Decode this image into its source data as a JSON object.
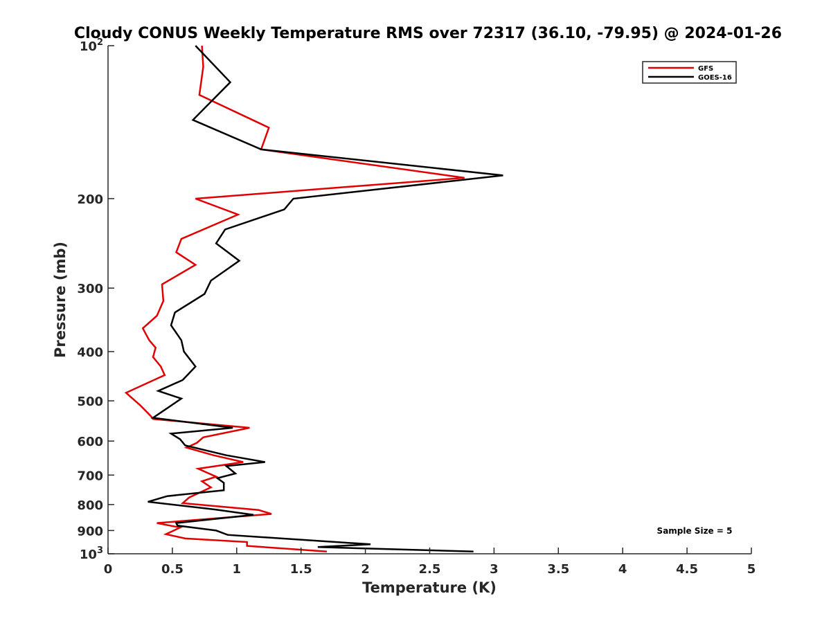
{
  "chart_data": {
    "type": "line",
    "title": "Cloudy CONUS Weekly Temperature RMS over 72317 (36.10, -79.95) @ 2024-01-26",
    "xlabel": "Temperature (K)",
    "ylabel": "Pressure (mb)",
    "xlim": [
      0,
      5
    ],
    "ylim": [
      100,
      1000
    ],
    "y_scale": "log",
    "y_reversed": true,
    "x_ticks": [
      "0",
      "0.5",
      "1",
      "1.5",
      "2",
      "2.5",
      "3",
      "3.5",
      "4",
      "4.5",
      "5"
    ],
    "y_ticks": [
      {
        "value": 100,
        "base": "10",
        "exp": "2"
      },
      {
        "value": 200,
        "label": "200"
      },
      {
        "value": 300,
        "label": "300"
      },
      {
        "value": 400,
        "label": "400"
      },
      {
        "value": 500,
        "label": "500"
      },
      {
        "value": 600,
        "label": "600"
      },
      {
        "value": 700,
        "label": "700"
      },
      {
        "value": 800,
        "label": "800"
      },
      {
        "value": 900,
        "label": "900"
      },
      {
        "value": 1000,
        "base": "10",
        "exp": "3"
      }
    ],
    "grid": false,
    "legend": "top-right",
    "annotation": "Sample Size = 5",
    "series": [
      {
        "name": "GFS",
        "color": "#e00000",
        "points": [
          [
            0.73,
            100
          ],
          [
            0.74,
            110
          ],
          [
            0.71,
            125
          ],
          [
            1.25,
            145
          ],
          [
            1.19,
            160
          ],
          [
            2.77,
            182
          ],
          [
            0.68,
            200
          ],
          [
            1.01,
            215
          ],
          [
            0.57,
            240
          ],
          [
            0.53,
            255
          ],
          [
            0.68,
            270
          ],
          [
            0.42,
            295
          ],
          [
            0.43,
            318
          ],
          [
            0.38,
            340
          ],
          [
            0.27,
            360
          ],
          [
            0.32,
            380
          ],
          [
            0.37,
            393
          ],
          [
            0.35,
            410
          ],
          [
            0.41,
            428
          ],
          [
            0.44,
            445
          ],
          [
            0.14,
            482
          ],
          [
            0.25,
            510
          ],
          [
            0.33,
            535
          ],
          [
            0.35,
            543
          ],
          [
            1.1,
            565
          ],
          [
            0.74,
            590
          ],
          [
            0.69,
            605
          ],
          [
            0.61,
            618
          ],
          [
            0.82,
            640
          ],
          [
            1.05,
            660
          ],
          [
            0.7,
            680
          ],
          [
            0.84,
            705
          ],
          [
            0.73,
            720
          ],
          [
            0.8,
            740
          ],
          [
            0.63,
            775
          ],
          [
            0.58,
            795
          ],
          [
            1.17,
            820
          ],
          [
            1.27,
            835
          ],
          [
            0.38,
            870
          ],
          [
            0.56,
            888
          ],
          [
            0.45,
            915
          ],
          [
            0.6,
            933
          ],
          [
            1.08,
            948
          ],
          [
            1.08,
            965
          ],
          [
            1.7,
            990
          ]
        ]
      },
      {
        "name": "GOES-16",
        "color": "#000000",
        "points": [
          [
            0.68,
            100
          ],
          [
            0.95,
            118
          ],
          [
            0.66,
            140
          ],
          [
            1.19,
            160
          ],
          [
            3.07,
            180
          ],
          [
            1.44,
            200
          ],
          [
            1.37,
            210
          ],
          [
            0.91,
            230
          ],
          [
            0.84,
            245
          ],
          [
            1.02,
            265
          ],
          [
            0.8,
            290
          ],
          [
            0.75,
            308
          ],
          [
            0.52,
            335
          ],
          [
            0.49,
            355
          ],
          [
            0.57,
            380
          ],
          [
            0.59,
            400
          ],
          [
            0.68,
            428
          ],
          [
            0.58,
            455
          ],
          [
            0.39,
            478
          ],
          [
            0.57,
            495
          ],
          [
            0.35,
            540
          ],
          [
            0.97,
            565
          ],
          [
            0.49,
            580
          ],
          [
            0.56,
            595
          ],
          [
            0.6,
            612
          ],
          [
            0.92,
            640
          ],
          [
            1.22,
            660
          ],
          [
            0.92,
            672
          ],
          [
            0.99,
            695
          ],
          [
            0.85,
            710
          ],
          [
            0.9,
            725
          ],
          [
            0.9,
            750
          ],
          [
            0.46,
            770
          ],
          [
            0.31,
            790
          ],
          [
            0.83,
            818
          ],
          [
            1.13,
            838
          ],
          [
            0.53,
            870
          ],
          [
            0.54,
            880
          ],
          [
            0.84,
            900
          ],
          [
            0.93,
            918
          ],
          [
            2.04,
            958
          ],
          [
            1.63,
            970
          ],
          [
            2.84,
            990
          ]
        ]
      }
    ]
  }
}
